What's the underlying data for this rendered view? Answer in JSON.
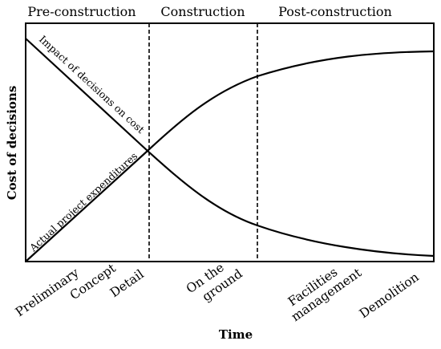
{
  "diagram": {
    "phases": [
      "Pre-construction",
      "Construction",
      "Post-construction"
    ],
    "y_axis_label": "Cost of decisions",
    "x_axis_label": "Time",
    "curves": {
      "decreasing": "Impact of decisions on cost",
      "increasing": "Actual project expenditures"
    },
    "x_ticks": {
      "preliminary": "Preliminary",
      "concept": "Concept",
      "detail": "Detail",
      "on_the_ground_1": "On the",
      "on_the_ground_2": "ground",
      "facilities_1": "Facilities",
      "facilities_2": "management",
      "demolition": "Demolition"
    }
  }
}
